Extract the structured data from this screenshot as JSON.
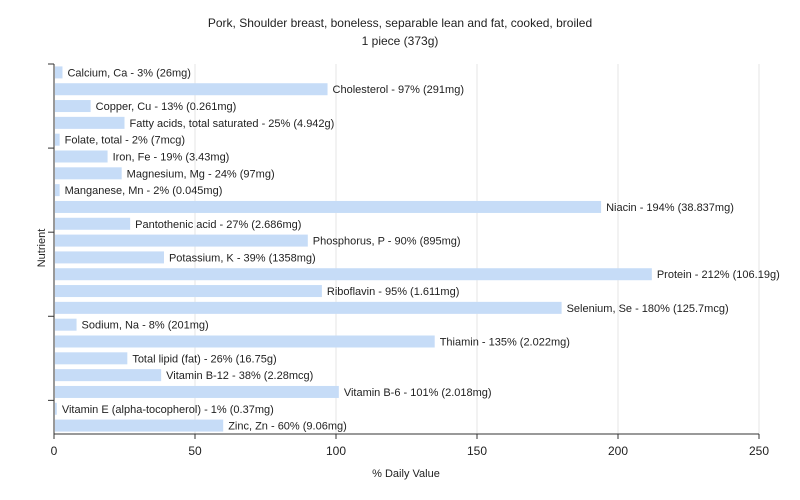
{
  "chart_data": {
    "type": "bar",
    "orientation": "horizontal",
    "title": "Pork, Shoulder breast, boneless, separable lean and fat, cooked, broiled",
    "subtitle": "1 piece (373g)",
    "xlabel": "% Daily Value",
    "ylabel": "Nutrient",
    "xlim": [
      0,
      250
    ],
    "xticks": [
      0,
      50,
      100,
      150,
      200,
      250
    ],
    "grid": true,
    "bar_color": "#c6dcf7",
    "bars": [
      {
        "name": "Calcium, Ca",
        "value": 3,
        "label": "Calcium, Ca - 3% (26mg)"
      },
      {
        "name": "Cholesterol",
        "value": 97,
        "label": "Cholesterol - 97% (291mg)"
      },
      {
        "name": "Copper, Cu",
        "value": 13,
        "label": "Copper, Cu - 13% (0.261mg)"
      },
      {
        "name": "Fatty acids, total saturated",
        "value": 25,
        "label": "Fatty acids, total saturated - 25% (4.942g)"
      },
      {
        "name": "Folate, total",
        "value": 2,
        "label": "Folate, total - 2% (7mcg)"
      },
      {
        "name": "Iron, Fe",
        "value": 19,
        "label": "Iron, Fe - 19% (3.43mg)"
      },
      {
        "name": "Magnesium, Mg",
        "value": 24,
        "label": "Magnesium, Mg - 24% (97mg)"
      },
      {
        "name": "Manganese, Mn",
        "value": 2,
        "label": "Manganese, Mn - 2% (0.045mg)"
      },
      {
        "name": "Niacin",
        "value": 194,
        "label": "Niacin - 194% (38.837mg)"
      },
      {
        "name": "Pantothenic acid",
        "value": 27,
        "label": "Pantothenic acid - 27% (2.686mg)"
      },
      {
        "name": "Phosphorus, P",
        "value": 90,
        "label": "Phosphorus, P - 90% (895mg)"
      },
      {
        "name": "Potassium, K",
        "value": 39,
        "label": "Potassium, K - 39% (1358mg)"
      },
      {
        "name": "Protein",
        "value": 212,
        "label": "Protein - 212% (106.19g)"
      },
      {
        "name": "Riboflavin",
        "value": 95,
        "label": "Riboflavin - 95% (1.611mg)"
      },
      {
        "name": "Selenium, Se",
        "value": 180,
        "label": "Selenium, Se - 180% (125.7mcg)"
      },
      {
        "name": "Sodium, Na",
        "value": 8,
        "label": "Sodium, Na - 8% (201mg)"
      },
      {
        "name": "Thiamin",
        "value": 135,
        "label": "Thiamin - 135% (2.022mg)"
      },
      {
        "name": "Total lipid (fat)",
        "value": 26,
        "label": "Total lipid (fat) - 26% (16.75g)"
      },
      {
        "name": "Vitamin B-12",
        "value": 38,
        "label": "Vitamin B-12 - 38% (2.28mcg)"
      },
      {
        "name": "Vitamin B-6",
        "value": 101,
        "label": "Vitamin B-6 - 101% (2.018mg)"
      },
      {
        "name": "Vitamin E (alpha-tocopherol)",
        "value": 1,
        "label": "Vitamin E (alpha-tocopherol) - 1% (0.37mg)"
      },
      {
        "name": "Zinc, Zn",
        "value": 60,
        "label": "Zinc, Zn - 60% (9.06mg)"
      }
    ]
  }
}
